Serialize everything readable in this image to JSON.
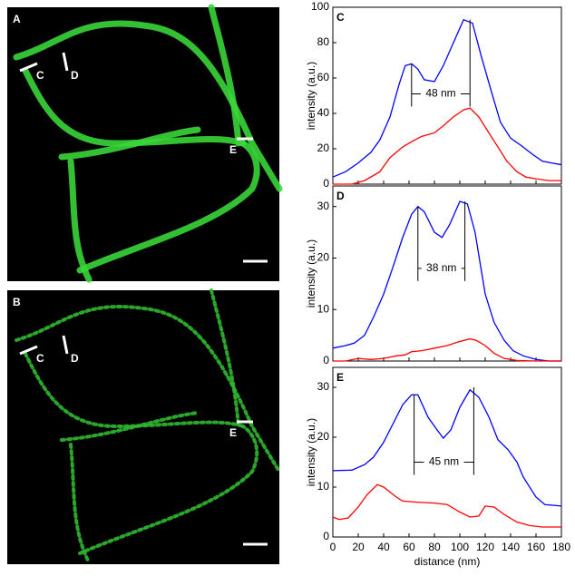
{
  "images": [
    {
      "label": "A",
      "markers": [
        "C",
        "D",
        "E"
      ]
    },
    {
      "label": "B",
      "markers": [
        "C",
        "D",
        "E"
      ]
    }
  ],
  "chart_data": [
    {
      "type": "line",
      "title": "C",
      "y_label": "intensity (a.u.)",
      "xlim": [
        0,
        180
      ],
      "xticks": [
        0,
        20,
        40,
        60,
        80,
        100,
        120,
        140,
        160,
        180
      ],
      "show_xtick_labels": false,
      "ylim": [
        0,
        100
      ],
      "yticks": [
        0,
        20,
        40,
        60,
        80,
        100
      ],
      "series": [
        {
          "color": "#0000ff",
          "x": [
            0,
            10,
            20,
            30,
            37,
            45,
            52,
            57,
            62,
            67,
            72,
            80,
            87,
            95,
            103,
            110,
            117,
            125,
            132,
            140,
            148,
            157,
            165,
            172,
            180
          ],
          "values": [
            4,
            7,
            12,
            18,
            25,
            38,
            56,
            67,
            68,
            65,
            59,
            58,
            67,
            80,
            93,
            91,
            72,
            52,
            35,
            26,
            22,
            17,
            13,
            12,
            11
          ]
        },
        {
          "color": "#ff0000",
          "x": [
            0,
            15,
            25,
            37,
            45,
            55,
            62,
            70,
            80,
            87,
            95,
            103,
            108,
            115,
            122,
            130,
            137,
            145,
            152,
            160,
            170,
            180
          ],
          "values": [
            0,
            0,
            2,
            7,
            15,
            21,
            24,
            27,
            29,
            33,
            38,
            42,
            43,
            38,
            30,
            21,
            13,
            7,
            4,
            3,
            2,
            2
          ]
        }
      ],
      "annotation": {
        "text": "48 nm",
        "x": [
          62,
          108
        ],
        "y": 51,
        "top": [
          68,
          93
        ]
      }
    },
    {
      "type": "line",
      "title": "D",
      "y_label": "intensity (a.u.)",
      "xlim": [
        0,
        180
      ],
      "xticks": [
        0,
        20,
        40,
        60,
        80,
        100,
        120,
        140,
        160,
        180
      ],
      "show_xtick_labels": false,
      "ylim": [
        0,
        34
      ],
      "yticks": [
        0,
        10,
        20,
        30
      ],
      "series": [
        {
          "color": "#0000ff",
          "x": [
            0,
            10,
            17,
            25,
            32,
            40,
            47,
            55,
            62,
            67,
            72,
            80,
            86,
            92,
            100,
            106,
            112,
            120,
            127,
            135,
            142,
            150,
            160,
            170,
            180
          ],
          "values": [
            2.5,
            3,
            3.5,
            5,
            8.5,
            13,
            18,
            24,
            28.5,
            30,
            29,
            25,
            24,
            26.5,
            31,
            30.5,
            25,
            13,
            7.5,
            4,
            2,
            1,
            0.3,
            0,
            0
          ]
        },
        {
          "color": "#ff0000",
          "x": [
            0,
            10,
            20,
            30,
            40,
            50,
            57,
            62,
            70,
            80,
            90,
            100,
            108,
            113,
            120,
            127,
            135,
            145,
            160,
            180
          ],
          "values": [
            0,
            0,
            0.5,
            0.3,
            0.5,
            1,
            1.2,
            1.8,
            2,
            2.5,
            3,
            3.8,
            4.3,
            4,
            3,
            1.5,
            0.5,
            0.1,
            0,
            0
          ]
        }
      ],
      "annotation": {
        "text": "38 nm",
        "x": [
          67,
          104
        ],
        "y": 18,
        "top": [
          30,
          31
        ]
      }
    },
    {
      "type": "line",
      "title": "E",
      "y_label": "intensity (a.u.)",
      "x_label": "distance (nm)",
      "xlim": [
        0,
        180
      ],
      "xticks": [
        0,
        20,
        40,
        60,
        80,
        100,
        120,
        140,
        160,
        180
      ],
      "show_xtick_labels": true,
      "ylim": [
        0,
        34
      ],
      "yticks": [
        0,
        10,
        20,
        30
      ],
      "series": [
        {
          "color": "#0000ff",
          "x": [
            0,
            15,
            25,
            32,
            40,
            48,
            55,
            62,
            67,
            75,
            82,
            87,
            93,
            100,
            108,
            115,
            123,
            130,
            138,
            145,
            150,
            160,
            167,
            180
          ],
          "values": [
            13.3,
            13.4,
            14.5,
            16,
            19,
            23,
            26.5,
            28.5,
            28.5,
            24,
            21.5,
            19.8,
            21.5,
            26,
            29.5,
            28,
            24,
            19.5,
            17.5,
            15,
            12,
            8,
            6.5,
            6.2
          ]
        },
        {
          "color": "#ff0000",
          "x": [
            0,
            5,
            12,
            20,
            27,
            35,
            40,
            45,
            50,
            55,
            65,
            80,
            90,
            100,
            108,
            115,
            120,
            127,
            135,
            145,
            155,
            165,
            180
          ],
          "values": [
            4,
            3.5,
            3.8,
            6,
            8.5,
            10.5,
            10,
            9,
            8,
            7.2,
            7,
            6.8,
            6.5,
            5,
            4,
            4.2,
            6.2,
            6,
            4.5,
            3,
            2.3,
            2,
            2
          ]
        }
      ],
      "annotation": {
        "text": "45 nm",
        "x": [
          64,
          111
        ],
        "y": 15,
        "top": [
          28.5,
          30
        ]
      }
    }
  ]
}
